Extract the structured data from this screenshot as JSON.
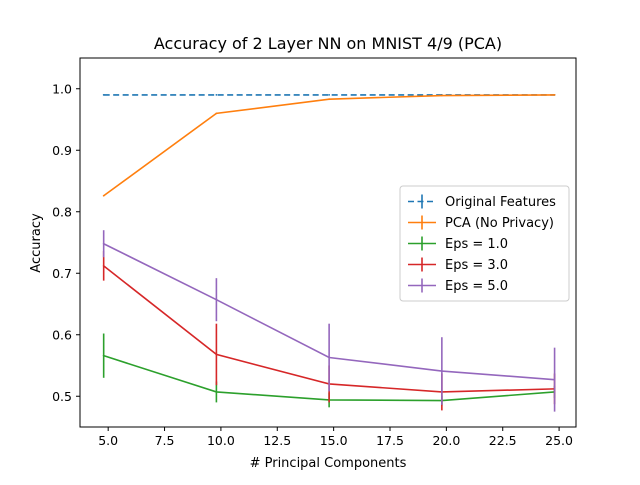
{
  "chart_data": {
    "type": "line",
    "title": "Accuracy of 2 Layer NN on MNIST 4/9 (PCA)",
    "xlabel": "# Principal Components",
    "ylabel": "Accuracy",
    "xlim": [
      3.75,
      25.75
    ],
    "ylim": [
      0.45,
      1.05
    ],
    "xticks": [
      5.0,
      7.5,
      10.0,
      12.5,
      15.0,
      17.5,
      20.0,
      22.5,
      25.0
    ],
    "xtick_labels": [
      "5.0",
      "7.5",
      "10.0",
      "12.5",
      "15.0",
      "17.5",
      "20.0",
      "22.5",
      "25.0"
    ],
    "yticks": [
      0.5,
      0.6,
      0.7,
      0.8,
      0.9,
      1.0
    ],
    "ytick_labels": [
      "0.5",
      "0.6",
      "0.7",
      "0.8",
      "0.9",
      "1.0"
    ],
    "grid": false,
    "legend_position": "center-right",
    "series": [
      {
        "name": "Original Features",
        "color": "#1f77b4",
        "dashed": true,
        "x": [
          4.8,
          9.8,
          14.8,
          19.8,
          24.8
        ],
        "values": [
          0.99,
          0.99,
          0.99,
          0.99,
          0.99
        ],
        "err": [
          0,
          0,
          0,
          0,
          0
        ]
      },
      {
        "name": "PCA (No Privacy)",
        "color": "#ff7f0e",
        "dashed": false,
        "x": [
          4.8,
          9.8,
          14.8,
          19.8,
          24.8
        ],
        "values": [
          0.826,
          0.96,
          0.983,
          0.989,
          0.99
        ],
        "err": [
          0,
          0,
          0,
          0,
          0
        ]
      },
      {
        "name": "Eps = 1.0",
        "color": "#2ca02c",
        "dashed": false,
        "x": [
          4.8,
          9.8,
          14.8,
          19.8,
          24.8
        ],
        "values": [
          0.566,
          0.507,
          0.494,
          0.493,
          0.507
        ],
        "err": [
          0.036,
          0.017,
          0.012,
          0.008,
          0.01
        ]
      },
      {
        "name": "Eps = 3.0",
        "color": "#d62728",
        "dashed": false,
        "x": [
          4.8,
          9.8,
          14.8,
          19.8,
          24.8
        ],
        "values": [
          0.712,
          0.568,
          0.52,
          0.507,
          0.512
        ],
        "err": [
          0.024,
          0.05,
          0.03,
          0.03,
          0.025
        ]
      },
      {
        "name": "Eps = 5.0",
        "color": "#9467bd",
        "dashed": false,
        "x": [
          4.8,
          9.8,
          14.8,
          19.8,
          24.8
        ],
        "values": [
          0.748,
          0.657,
          0.563,
          0.541,
          0.527
        ],
        "err": [
          0.022,
          0.035,
          0.055,
          0.055,
          0.052
        ]
      }
    ]
  }
}
